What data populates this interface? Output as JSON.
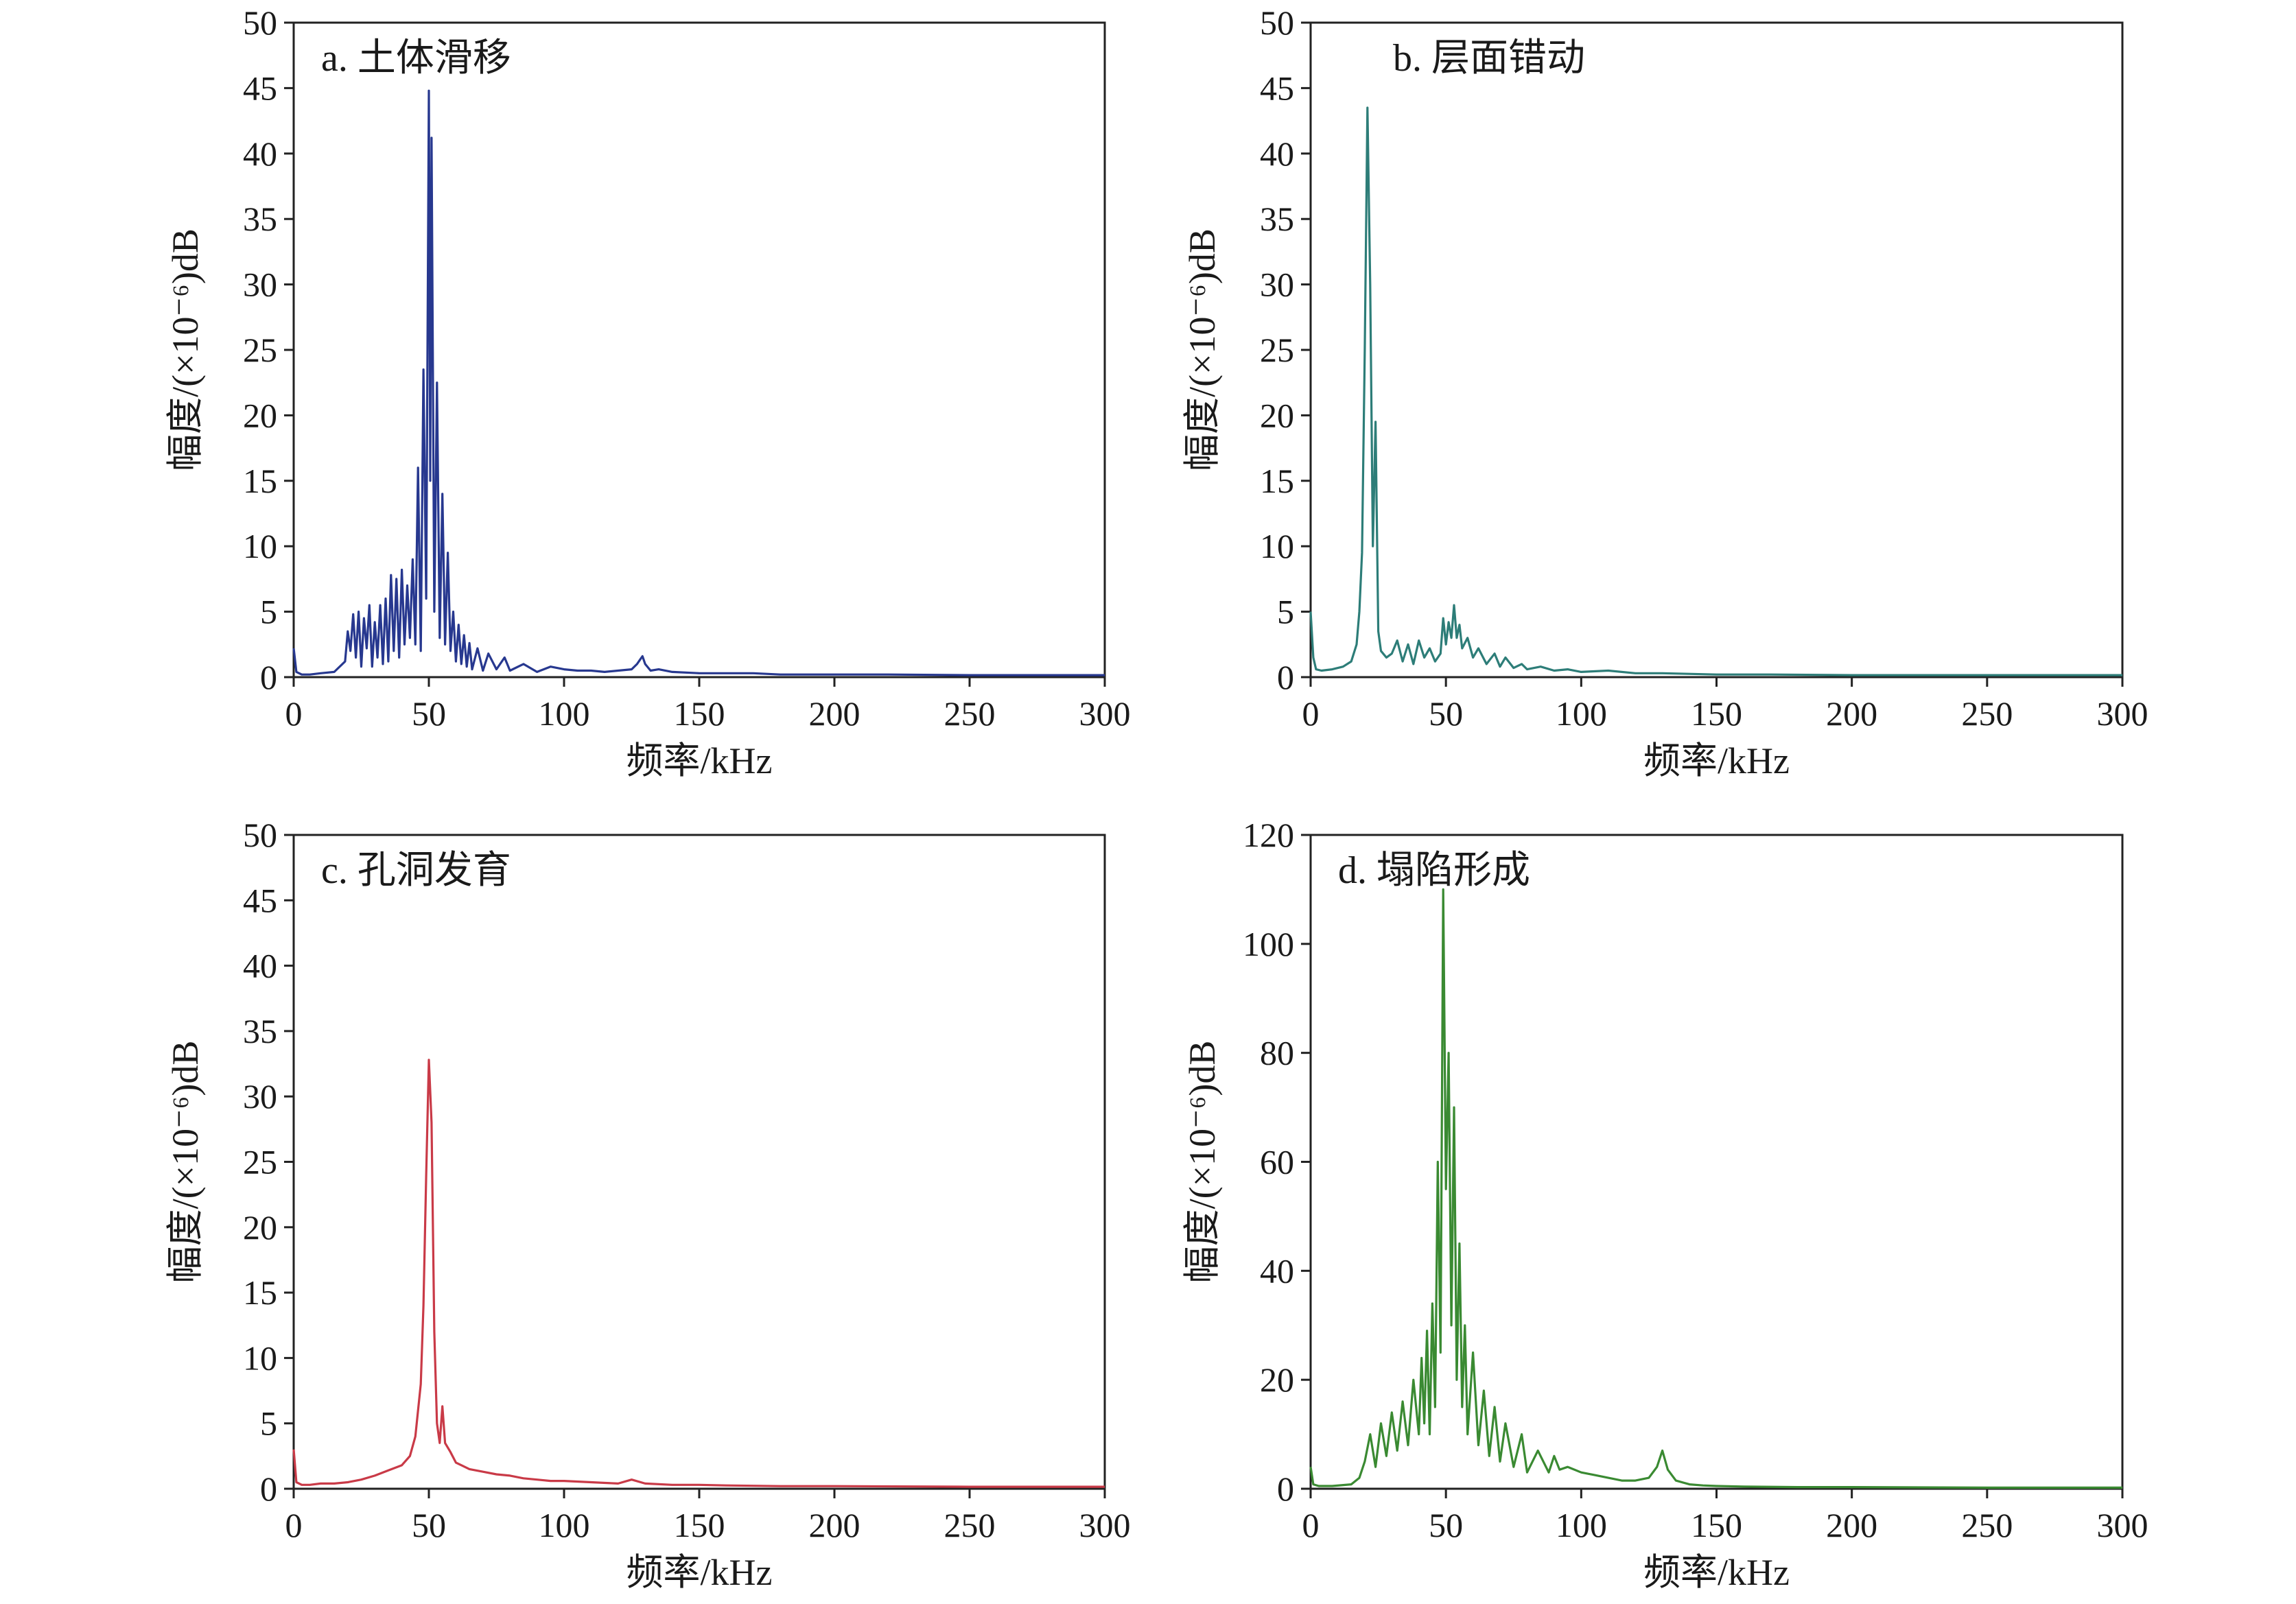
{
  "chart_data": [
    {
      "type": "line",
      "title": "a. 土体滑移",
      "xlabel": "频率/kHz",
      "ylabel": "幅度/(×10⁻⁶)dB",
      "xlim": [
        0,
        300
      ],
      "ylim": [
        0,
        50
      ],
      "xticks": [
        "0",
        "50",
        "100",
        "150",
        "200",
        "250",
        "300"
      ],
      "yticks": [
        "0",
        "5",
        "10",
        "15",
        "20",
        "25",
        "30",
        "35",
        "40",
        "45",
        "50"
      ],
      "grid": false,
      "color": "#27388f",
      "series": [
        {
          "x": [
            0,
            1,
            3,
            6,
            10,
            15,
            19,
            20,
            21,
            22,
            23,
            24,
            25,
            26,
            27,
            28,
            29,
            30,
            31,
            32,
            33,
            34,
            35,
            36,
            37,
            38,
            39,
            40,
            41,
            42,
            43,
            44,
            45,
            46,
            47,
            48,
            49,
            50,
            50.5,
            51,
            52,
            53,
            54,
            55,
            56,
            57,
            58,
            59,
            60,
            61,
            62,
            63,
            64,
            65,
            66,
            68,
            70,
            72,
            75,
            78,
            80,
            85,
            90,
            95,
            100,
            105,
            110,
            115,
            120,
            125,
            127,
            128,
            129,
            130,
            132,
            135,
            140,
            150,
            160,
            170,
            180,
            200,
            220,
            250,
            280,
            300
          ],
          "y": [
            2.2,
            0.4,
            0.2,
            0.2,
            0.3,
            0.4,
            1.2,
            3.5,
            2.0,
            4.8,
            1.5,
            5.0,
            0.8,
            4.5,
            2.2,
            5.5,
            0.8,
            4.2,
            1.5,
            5.5,
            1.0,
            6.0,
            1.2,
            7.8,
            2.0,
            7.5,
            1.5,
            8.2,
            2.5,
            7.0,
            3.0,
            9.0,
            2.5,
            16.0,
            2.0,
            23.5,
            6.0,
            44.8,
            15.0,
            41.2,
            5.0,
            22.5,
            3.0,
            14.0,
            2.5,
            9.5,
            2.0,
            5.0,
            1.2,
            4.0,
            1.0,
            3.2,
            0.8,
            2.6,
            0.6,
            2.2,
            0.5,
            1.8,
            0.6,
            1.5,
            0.5,
            1.0,
            0.4,
            0.8,
            0.6,
            0.5,
            0.5,
            0.4,
            0.5,
            0.6,
            1.0,
            1.3,
            1.6,
            1.0,
            0.5,
            0.6,
            0.4,
            0.3,
            0.3,
            0.3,
            0.2,
            0.2,
            0.2,
            0.15,
            0.15,
            0.15
          ]
        }
      ]
    },
    {
      "type": "line",
      "title": "b. 层面错动",
      "xlabel": "频率/kHz",
      "ylabel": "幅度/(×10⁻⁶)dB",
      "xlim": [
        0,
        300
      ],
      "ylim": [
        0,
        50
      ],
      "xticks": [
        "0",
        "50",
        "100",
        "150",
        "200",
        "250",
        "300"
      ],
      "yticks": [
        "0",
        "5",
        "10",
        "15",
        "20",
        "25",
        "30",
        "35",
        "40",
        "45",
        "50"
      ],
      "grid": false,
      "color": "#2d7d78",
      "series": [
        {
          "x": [
            0,
            1,
            2,
            4,
            8,
            12,
            15,
            17,
            18,
            19,
            20,
            21,
            22,
            23,
            24,
            25,
            26,
            28,
            30,
            32,
            34,
            36,
            38,
            40,
            42,
            44,
            46,
            48,
            49,
            50,
            51,
            52,
            53,
            54,
            55,
            56,
            58,
            60,
            62,
            65,
            68,
            70,
            72,
            75,
            78,
            80,
            85,
            90,
            95,
            100,
            110,
            120,
            130,
            150,
            170,
            200,
            250,
            300
          ],
          "y": [
            5.0,
            1.5,
            0.6,
            0.5,
            0.6,
            0.8,
            1.2,
            2.5,
            5.0,
            9.5,
            25.0,
            43.5,
            30.0,
            10.0,
            19.5,
            3.5,
            2.0,
            1.5,
            1.8,
            2.8,
            1.2,
            2.5,
            1.0,
            2.8,
            1.5,
            2.2,
            1.2,
            1.8,
            4.5,
            2.5,
            4.2,
            3.0,
            5.5,
            3.0,
            4.0,
            2.2,
            3.0,
            1.5,
            2.2,
            1.0,
            1.8,
            0.8,
            1.5,
            0.7,
            1.0,
            0.6,
            0.8,
            0.5,
            0.6,
            0.4,
            0.5,
            0.3,
            0.3,
            0.2,
            0.2,
            0.15,
            0.15,
            0.15
          ]
        }
      ]
    },
    {
      "type": "line",
      "title": "c. 孔洞发育",
      "xlabel": "频率/kHz",
      "ylabel": "幅度/(×10⁻⁶)dB",
      "xlim": [
        0,
        300
      ],
      "ylim": [
        0,
        50
      ],
      "xticks": [
        "0",
        "50",
        "100",
        "150",
        "200",
        "250",
        "300"
      ],
      "yticks": [
        "0",
        "5",
        "10",
        "15",
        "20",
        "25",
        "30",
        "35",
        "40",
        "45",
        "50"
      ],
      "grid": false,
      "color": "#c93a47",
      "series": [
        {
          "x": [
            0,
            1,
            3,
            6,
            10,
            15,
            20,
            25,
            30,
            35,
            40,
            43,
            45,
            47,
            48,
            49,
            50,
            51,
            52,
            53,
            54,
            55,
            56,
            58,
            60,
            62,
            65,
            70,
            75,
            80,
            85,
            90,
            95,
            100,
            110,
            120,
            125,
            130,
            140,
            150,
            160,
            180,
            200,
            250,
            300
          ],
          "y": [
            3.0,
            0.5,
            0.3,
            0.3,
            0.4,
            0.4,
            0.5,
            0.7,
            1.0,
            1.4,
            1.8,
            2.5,
            4.0,
            8.0,
            14.0,
            24.0,
            32.8,
            28.0,
            12.0,
            5.0,
            3.5,
            6.3,
            3.5,
            2.8,
            2.0,
            1.8,
            1.5,
            1.3,
            1.1,
            1.0,
            0.8,
            0.7,
            0.6,
            0.6,
            0.5,
            0.4,
            0.7,
            0.4,
            0.3,
            0.3,
            0.25,
            0.2,
            0.2,
            0.15,
            0.15
          ]
        }
      ]
    },
    {
      "type": "line",
      "title": "d. 塌陷形成",
      "xlabel": "频率/kHz",
      "ylabel": "幅度/(×10⁻⁶)dB",
      "xlim": [
        0,
        300
      ],
      "ylim": [
        0,
        120
      ],
      "xticks": [
        "0",
        "50",
        "100",
        "150",
        "200",
        "250",
        "300"
      ],
      "yticks": [
        "0",
        "20",
        "40",
        "60",
        "80",
        "100",
        "120"
      ],
      "grid": false,
      "color": "#3a8a32",
      "series": [
        {
          "x": [
            0,
            1,
            3,
            8,
            15,
            18,
            20,
            22,
            24,
            26,
            28,
            30,
            32,
            34,
            36,
            38,
            40,
            41,
            42,
            43,
            44,
            45,
            46,
            47,
            48,
            49,
            50,
            51,
            52,
            53,
            54,
            55,
            56,
            57,
            58,
            60,
            62,
            64,
            66,
            68,
            70,
            72,
            75,
            78,
            80,
            84,
            88,
            90,
            92,
            95,
            100,
            105,
            110,
            115,
            120,
            125,
            128,
            130,
            132,
            135,
            140,
            145,
            150,
            160,
            180,
            200,
            250,
            300
          ],
          "y": [
            4.0,
            0.8,
            0.5,
            0.5,
            0.8,
            2.0,
            5.0,
            10.0,
            4.0,
            12.0,
            6.0,
            14.0,
            7.0,
            16.0,
            8.0,
            20.0,
            10.0,
            24.0,
            12.0,
            29.0,
            10.0,
            34.0,
            15.0,
            60.0,
            25.0,
            110.0,
            55.0,
            80.0,
            30.0,
            70.0,
            20.0,
            45.0,
            15.0,
            30.0,
            10.0,
            25.0,
            8.0,
            18.0,
            6.0,
            15.0,
            5.0,
            12.0,
            4.0,
            10.0,
            3.0,
            7.0,
            3.0,
            6.0,
            3.5,
            4.0,
            3.0,
            2.5,
            2.0,
            1.5,
            1.5,
            2.0,
            4.0,
            7.0,
            3.5,
            1.5,
            0.8,
            0.6,
            0.5,
            0.4,
            0.3,
            0.3,
            0.2,
            0.2
          ]
        }
      ]
    }
  ]
}
